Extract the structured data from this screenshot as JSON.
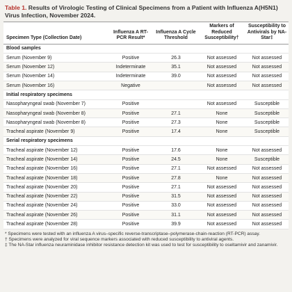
{
  "title": {
    "number": "Table 1.",
    "text": "Results of Virologic Testing of Clinical Specimens from a Patient with Influenza A(H5N1) Virus Infection, November 2024."
  },
  "table": {
    "headers": [
      "Specimen Type (Collection Date)",
      "Influenza A RT-PCR Result*",
      "Influenza A Cycle Threshold",
      "Markers of Reduced Susceptibility†",
      "Susceptibility to Antivirals by NA-Star‡"
    ],
    "sections": [
      {
        "name": "Blood samples",
        "rows": [
          [
            "Serum (November 9)",
            "Positive",
            "26.3",
            "Not assessed",
            "Not assessed"
          ],
          [
            "Serum (November 12)",
            "Indeterminate",
            "35.1",
            "Not assessed",
            "Not assessed"
          ],
          [
            "Serum (November 14)",
            "Indeterminate",
            "39.0",
            "Not assessed",
            "Not assessed"
          ],
          [
            "Serum (November 16)",
            "Negative",
            null,
            "Not assessed",
            "Not assessed"
          ]
        ]
      },
      {
        "name": "Initial respiratory specimens",
        "rows": [
          [
            "Nasopharyngeal swab (November 7)",
            "Positive",
            null,
            "Not assessed",
            "Susceptible"
          ],
          [
            "Nasopharyngeal swab (November 8)",
            "Positive",
            "27.1",
            "None",
            "Susceptible"
          ],
          [
            "Nasopharyngeal swab (November 8)",
            "Positive",
            "27.3",
            "None",
            "Susceptible"
          ],
          [
            "Tracheal aspirate (November 9)",
            "Positive",
            "17.4",
            "None",
            "Susceptible"
          ]
        ]
      },
      {
        "name": "Serial respiratory specimens",
        "rows": [
          [
            "Tracheal aspirate (November 12)",
            "Positive",
            "17.6",
            "None",
            "Not assessed"
          ],
          [
            "Tracheal aspirate (November 14)",
            "Positive",
            "24.5",
            "None",
            "Susceptible"
          ],
          [
            "Tracheal aspirate (November 16)",
            "Positive",
            "27.1",
            "Not assessed",
            "Not assessed"
          ],
          [
            "Tracheal aspirate (November 18)",
            "Positive",
            "27.8",
            "None",
            "Not assessed"
          ],
          [
            "Tracheal aspirate (November 20)",
            "Positive",
            "27.1",
            "Not assessed",
            "Not assessed"
          ],
          [
            "Tracheal aspirate (November 22)",
            "Positive",
            "31.5",
            "Not assessed",
            "Not assessed"
          ],
          [
            "Tracheal aspirate (November 24)",
            "Positive",
            "33.0",
            "Not assessed",
            "Not assessed"
          ],
          [
            "Tracheal aspirate (November 26)",
            "Positive",
            "31.1",
            "Not assessed",
            "Not assessed"
          ],
          [
            "Tracheal aspirate (November 28)",
            "Positive",
            "39.9",
            "Not assessed",
            "Not assessed"
          ]
        ]
      }
    ]
  },
  "footnotes": [
    "* Specimens were tested with an influenza A virus–specific reverse-transcriptase–polymerase-chain-reaction (RT-PCR) assay.",
    "† Specimens were analyzed for viral sequence markers associated with reduced susceptibility to antiviral agents.",
    "‡ The NA-Star influenza neuraminidase inhibitor resistance detection kit was used to test for susceptibility to oseltamivir and zanamivir."
  ]
}
